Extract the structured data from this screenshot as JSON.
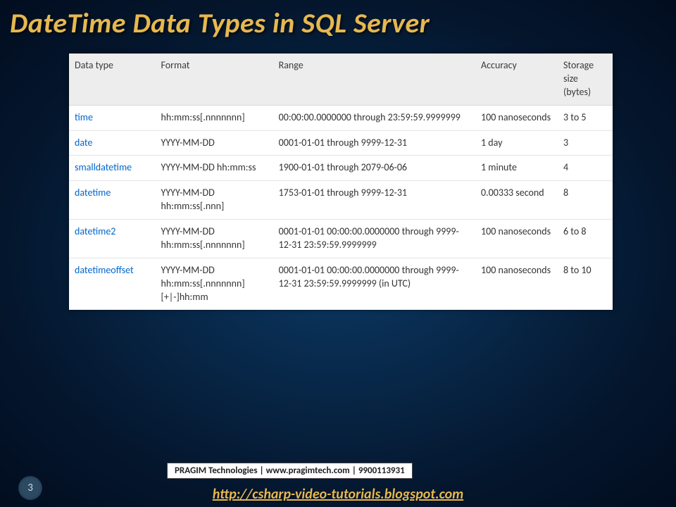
{
  "title": "DateTime Data Types in SQL Server",
  "slide_number": "3",
  "footer_box": "PRAGIM Technologies | www.pragimtech.com | 9900113931",
  "footer_link": "http://csharp-video-tutorials.blogspot.com",
  "table": {
    "col_widths": [
      "110px",
      "150px",
      "258px",
      "105px",
      "70px"
    ],
    "header_bg": "#ededed",
    "row_border": "#e4e4e4",
    "link_color": "#0066cc",
    "columns": [
      "Data type",
      "Format",
      "Range",
      "Accuracy",
      "Storage size (bytes)"
    ],
    "rows": [
      {
        "type": "time",
        "format": "hh:mm:ss[.nnnnnnn]",
        "range": "00:00:00.0000000 through 23:59:59.9999999",
        "accuracy": "100 nanoseconds",
        "storage": "3 to 5"
      },
      {
        "type": "date",
        "format": "YYYY-MM-DD",
        "range": "0001-01-01 through 9999-12-31",
        "accuracy": "1 day",
        "storage": "3"
      },
      {
        "type": "smalldatetime",
        "format": "YYYY-MM-DD hh:mm:ss",
        "range": "1900-01-01 through 2079-06-06",
        "accuracy": "1 minute",
        "storage": "4"
      },
      {
        "type": "datetime",
        "format": "YYYY-MM-DD hh:mm:ss[.nnn]",
        "range": "1753-01-01 through 9999-12-31",
        "accuracy": "0.00333 second",
        "storage": "8"
      },
      {
        "type": "datetime2",
        "format": "YYYY-MM-DD hh:mm:ss[.nnnnnnn]",
        "range": "0001-01-01 00:00:00.0000000 through 9999-12-31 23:59:59.9999999",
        "accuracy": "100 nanoseconds",
        "storage": "6 to 8"
      },
      {
        "type": "datetimeoffset",
        "format": "YYYY-MM-DD hh:mm:ss[.nnnnnnn] [+|-]hh:mm",
        "range": "0001-01-01 00:00:00.0000000 through 9999-12-31 23:59:59.9999999 (in UTC)",
        "accuracy": "100 nanoseconds",
        "storage": "8 to 10"
      }
    ]
  }
}
